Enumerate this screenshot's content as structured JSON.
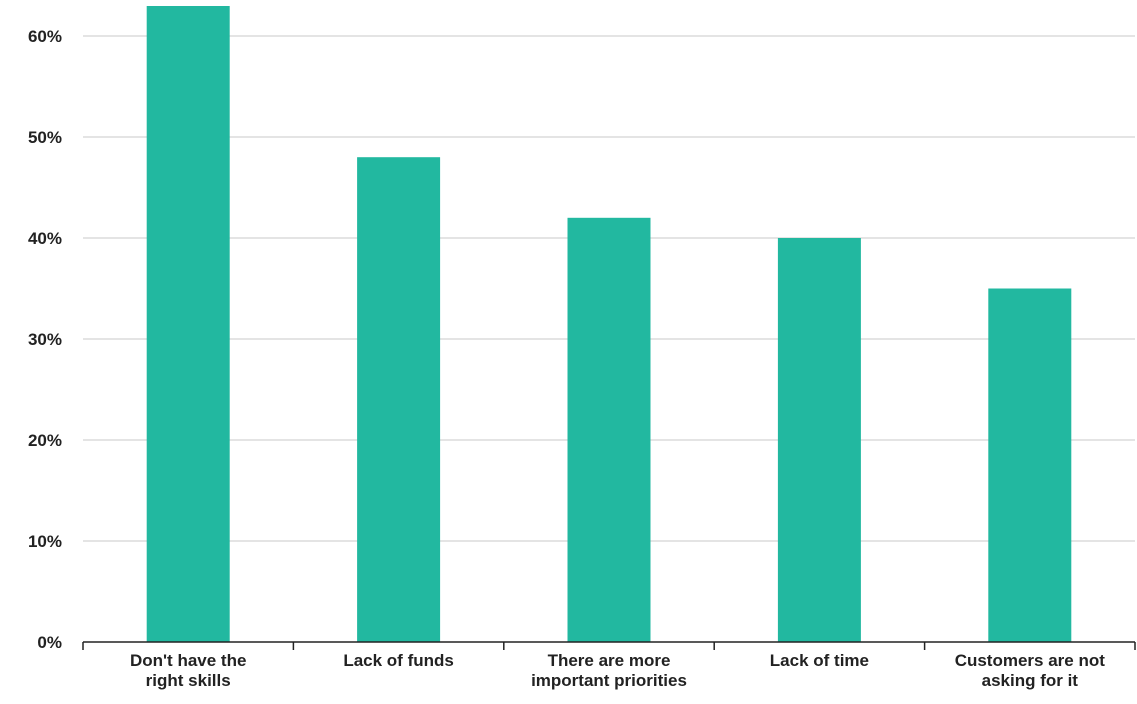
{
  "chart_data": {
    "type": "bar",
    "categories": [
      [
        "Don't have the",
        "right skills"
      ],
      [
        "Lack of funds"
      ],
      [
        "There are more",
        "important priorities"
      ],
      [
        "Lack of time"
      ],
      [
        "Customers are not",
        "asking for it"
      ]
    ],
    "values": [
      63,
      48,
      42,
      40,
      35
    ],
    "ylim": [
      0,
      60
    ],
    "yticks": [
      0,
      10,
      20,
      30,
      40,
      50,
      60
    ],
    "ytick_labels": [
      "0%",
      "10%",
      "20%",
      "30%",
      "40%",
      "50%",
      "60%"
    ],
    "bar_color": "#22b8a0",
    "grid": true,
    "title": "",
    "xlabel": "",
    "ylabel": ""
  }
}
